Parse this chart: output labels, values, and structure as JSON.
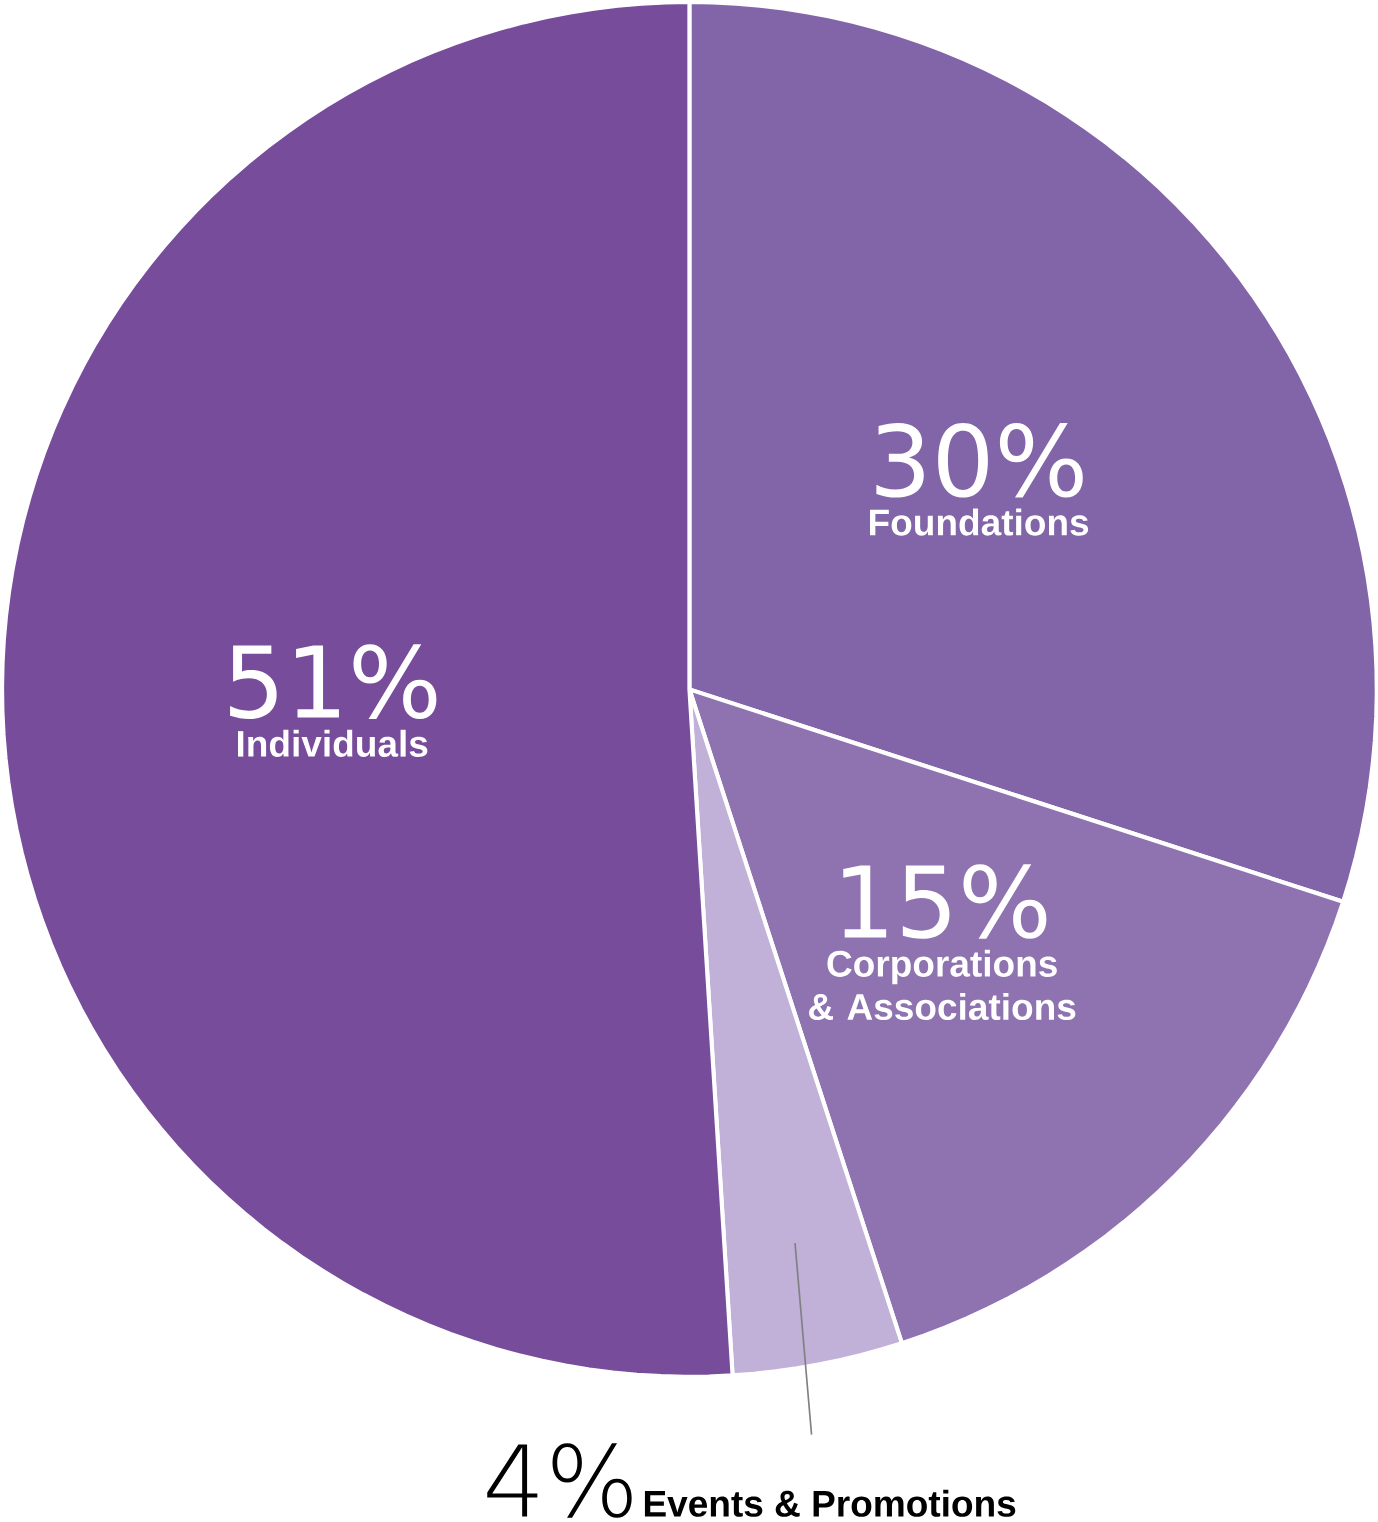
{
  "chart_data": {
    "type": "pie",
    "categories": [
      "Foundations",
      "Corporations & Associations",
      "Events & Promotions",
      "Individuals"
    ],
    "values": [
      30,
      15,
      4,
      51
    ],
    "value_labels": [
      "30%",
      "15%",
      "4%",
      "51%"
    ],
    "colors": [
      "#8264a8",
      "#8e73b0",
      "#c1b0d8",
      "#764c9b"
    ]
  }
}
